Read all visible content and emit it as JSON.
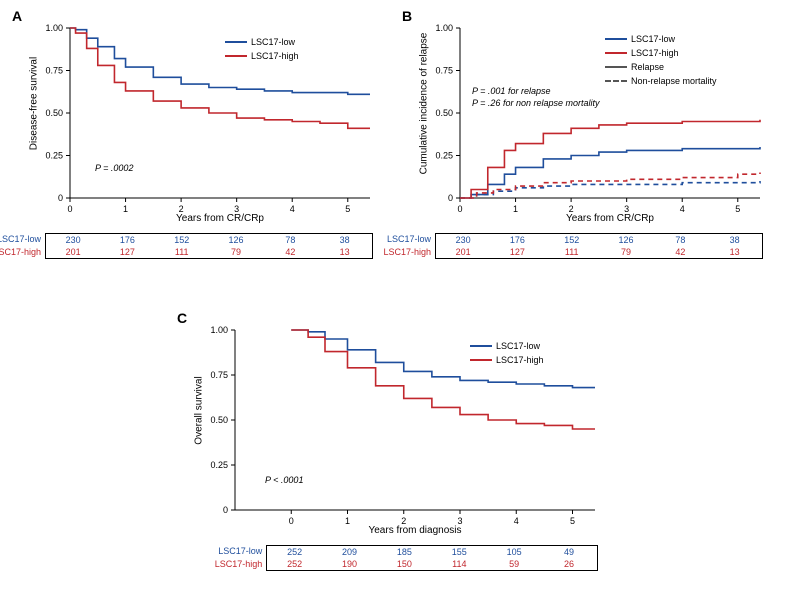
{
  "colors": {
    "low": "#1f4e9c",
    "high": "#c1272d",
    "axis": "#000000",
    "relapse": "#555555",
    "nrm": "#555555",
    "bg": "#ffffff"
  },
  "font": {
    "family": "Arial",
    "tick_size": 9,
    "label_size": 10,
    "panel_label_size": 14
  },
  "panels": {
    "A": {
      "label": "A",
      "ylabel": "Disease-free survival",
      "xlabel": "Years from CR/CRp",
      "xlim": [
        0,
        5.4
      ],
      "ylim": [
        0,
        1.0
      ],
      "xticks": [
        0,
        1,
        2,
        3,
        4,
        5
      ],
      "yticks": [
        0,
        0.25,
        0.5,
        0.75,
        1.0
      ],
      "legend": [
        {
          "label": "LSC17-low",
          "color": "#1f4e9c",
          "dash": "solid"
        },
        {
          "label": "LSC17-high",
          "color": "#c1272d",
          "dash": "solid"
        }
      ],
      "pvalue_text": "P = .0002",
      "curves": {
        "low": [
          [
            0,
            1.0
          ],
          [
            0.1,
            0.99
          ],
          [
            0.3,
            0.94
          ],
          [
            0.5,
            0.89
          ],
          [
            0.8,
            0.82
          ],
          [
            1.0,
            0.77
          ],
          [
            1.5,
            0.71
          ],
          [
            2.0,
            0.67
          ],
          [
            2.5,
            0.65
          ],
          [
            3.0,
            0.64
          ],
          [
            3.5,
            0.63
          ],
          [
            4.0,
            0.62
          ],
          [
            4.5,
            0.62
          ],
          [
            5.0,
            0.61
          ],
          [
            5.4,
            0.61
          ]
        ],
        "high": [
          [
            0,
            1.0
          ],
          [
            0.1,
            0.97
          ],
          [
            0.3,
            0.88
          ],
          [
            0.5,
            0.78
          ],
          [
            0.8,
            0.68
          ],
          [
            1.0,
            0.63
          ],
          [
            1.5,
            0.57
          ],
          [
            2.0,
            0.53
          ],
          [
            2.5,
            0.5
          ],
          [
            3.0,
            0.47
          ],
          [
            3.5,
            0.46
          ],
          [
            4.0,
            0.45
          ],
          [
            4.5,
            0.44
          ],
          [
            5.0,
            0.41
          ],
          [
            5.4,
            0.41
          ]
        ]
      },
      "risk": {
        "labels": [
          "LSC17-low",
          "LSC17-high"
        ],
        "low": [
          230,
          176,
          152,
          126,
          78,
          38
        ],
        "high": [
          201,
          127,
          111,
          79,
          42,
          13
        ]
      }
    },
    "B": {
      "label": "B",
      "ylabel": "Cumulative incidence of relapse",
      "xlabel": "Years from CR/CRp",
      "xlim": [
        0,
        5.4
      ],
      "ylim": [
        0,
        1.0
      ],
      "xticks": [
        0,
        1,
        2,
        3,
        4,
        5
      ],
      "yticks": [
        0,
        0.25,
        0.5,
        0.75,
        1.0
      ],
      "legend": [
        {
          "label": "LSC17-low",
          "color": "#1f4e9c",
          "dash": "solid"
        },
        {
          "label": "LSC17-high",
          "color": "#c1272d",
          "dash": "solid"
        },
        {
          "label": "Relapse",
          "color": "#555555",
          "dash": "solid"
        },
        {
          "label": "Non-relapse mortality",
          "color": "#555555",
          "dash": "dashed"
        }
      ],
      "pvalue_text_1": "P = .001 for relapse",
      "pvalue_text_2": "P = .26 for non relapse mortality",
      "curves": {
        "low_relapse": [
          [
            0,
            0.0
          ],
          [
            0.2,
            0.02
          ],
          [
            0.5,
            0.08
          ],
          [
            0.8,
            0.14
          ],
          [
            1.0,
            0.18
          ],
          [
            1.5,
            0.23
          ],
          [
            2.0,
            0.25
          ],
          [
            2.5,
            0.27
          ],
          [
            3.0,
            0.28
          ],
          [
            3.5,
            0.28
          ],
          [
            4.0,
            0.29
          ],
          [
            5.0,
            0.29
          ],
          [
            5.4,
            0.3
          ]
        ],
        "high_relapse": [
          [
            0,
            0.0
          ],
          [
            0.2,
            0.05
          ],
          [
            0.5,
            0.18
          ],
          [
            0.8,
            0.28
          ],
          [
            1.0,
            0.32
          ],
          [
            1.5,
            0.38
          ],
          [
            2.0,
            0.41
          ],
          [
            2.5,
            0.43
          ],
          [
            3.0,
            0.44
          ],
          [
            3.5,
            0.44
          ],
          [
            4.0,
            0.45
          ],
          [
            5.0,
            0.45
          ],
          [
            5.4,
            0.46
          ]
        ],
        "low_nrm": [
          [
            0,
            0.0
          ],
          [
            0.3,
            0.02
          ],
          [
            0.6,
            0.04
          ],
          [
            1.0,
            0.06
          ],
          [
            1.5,
            0.07
          ],
          [
            2.0,
            0.08
          ],
          [
            3.0,
            0.08
          ],
          [
            4.0,
            0.09
          ],
          [
            5.0,
            0.09
          ],
          [
            5.4,
            0.1
          ]
        ],
        "high_nrm": [
          [
            0,
            0.0
          ],
          [
            0.3,
            0.03
          ],
          [
            0.6,
            0.05
          ],
          [
            1.0,
            0.07
          ],
          [
            1.5,
            0.09
          ],
          [
            2.0,
            0.1
          ],
          [
            3.0,
            0.11
          ],
          [
            4.0,
            0.12
          ],
          [
            5.0,
            0.14
          ],
          [
            5.4,
            0.15
          ]
        ]
      },
      "risk": {
        "labels": [
          "LSC17-low",
          "LSC17-high"
        ],
        "low": [
          230,
          176,
          152,
          126,
          78,
          38
        ],
        "high": [
          201,
          127,
          111,
          79,
          42,
          13
        ]
      }
    },
    "C": {
      "label": "C",
      "ylabel": "Overall survival",
      "xlabel": "Years from diagnosis",
      "xlim": [
        -1,
        5.4
      ],
      "ylim": [
        0,
        1.0
      ],
      "xticks": [
        0,
        1,
        2,
        3,
        4,
        5
      ],
      "yticks": [
        0,
        0.25,
        0.5,
        0.75,
        1.0
      ],
      "legend": [
        {
          "label": "LSC17-low",
          "color": "#1f4e9c",
          "dash": "solid"
        },
        {
          "label": "LSC17-high",
          "color": "#c1272d",
          "dash": "solid"
        }
      ],
      "pvalue_text": "P < .0001",
      "curves": {
        "low": [
          [
            0,
            1.0
          ],
          [
            0.3,
            0.99
          ],
          [
            0.6,
            0.95
          ],
          [
            1.0,
            0.89
          ],
          [
            1.5,
            0.82
          ],
          [
            2.0,
            0.77
          ],
          [
            2.5,
            0.74
          ],
          [
            3.0,
            0.72
          ],
          [
            3.5,
            0.71
          ],
          [
            4.0,
            0.7
          ],
          [
            4.5,
            0.69
          ],
          [
            5.0,
            0.68
          ],
          [
            5.4,
            0.68
          ]
        ],
        "high": [
          [
            0,
            1.0
          ],
          [
            0.3,
            0.96
          ],
          [
            0.6,
            0.88
          ],
          [
            1.0,
            0.79
          ],
          [
            1.5,
            0.69
          ],
          [
            2.0,
            0.62
          ],
          [
            2.5,
            0.57
          ],
          [
            3.0,
            0.53
          ],
          [
            3.5,
            0.5
          ],
          [
            4.0,
            0.48
          ],
          [
            4.5,
            0.47
          ],
          [
            5.0,
            0.45
          ],
          [
            5.4,
            0.45
          ]
        ]
      },
      "risk": {
        "labels": [
          "LSC17-low",
          "LSC17-high"
        ],
        "low": [
          252,
          209,
          185,
          155,
          105,
          49
        ],
        "high": [
          252,
          190,
          150,
          114,
          59,
          26
        ]
      }
    }
  }
}
